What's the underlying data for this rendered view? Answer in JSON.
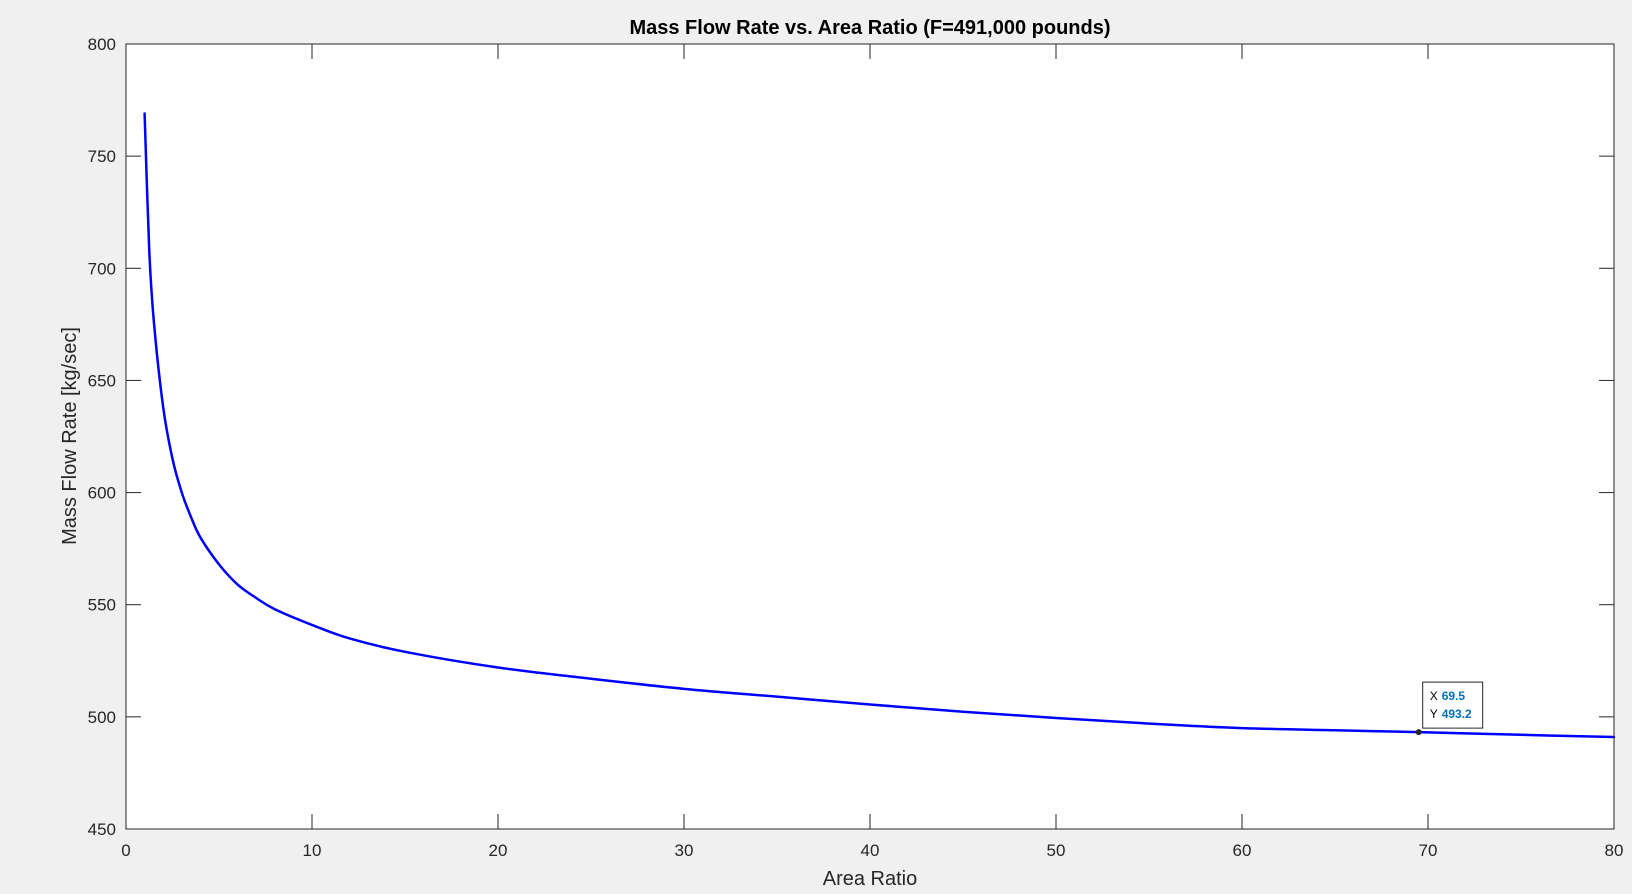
{
  "figure": {
    "background": "#f0f0f0"
  },
  "chart_data": {
    "type": "line",
    "title": "Mass Flow Rate vs. Area Ratio (F=491,000 pounds)",
    "xlabel": "Area Ratio",
    "ylabel": "Mass Flow Rate [kg/sec]",
    "xlim": [
      0,
      80
    ],
    "ylim": [
      450,
      800
    ],
    "xticks": [
      0,
      10,
      20,
      30,
      40,
      50,
      60,
      70,
      80
    ],
    "yticks": [
      450,
      500,
      550,
      600,
      650,
      700,
      750,
      800
    ],
    "grid": false,
    "box": true,
    "series": [
      {
        "color": "#0000ff",
        "x": [
          1,
          1.25,
          1.5,
          2,
          2.5,
          3,
          3.5,
          4,
          5,
          6,
          7,
          8,
          10,
          12,
          15,
          20,
          25,
          30,
          35,
          40,
          45,
          50,
          55,
          60,
          65,
          69.5,
          75,
          80
        ],
        "y": [
          769,
          708,
          676,
          638,
          615,
          600,
          589,
          580,
          568,
          559,
          553,
          548,
          541,
          535,
          529,
          522,
          517,
          512.5,
          509,
          505.5,
          502.3,
          499.5,
          497,
          495,
          494,
          493.2,
          492,
          491
        ]
      }
    ],
    "datatip": {
      "x_label": "X",
      "y_label": "Y",
      "x_value": "69.5",
      "y_value": "493.2",
      "x": 69.5,
      "y": 493.2
    }
  }
}
